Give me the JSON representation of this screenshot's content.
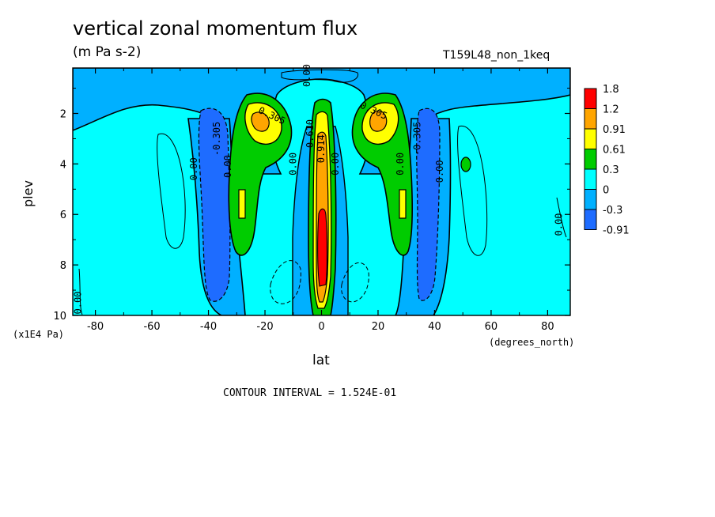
{
  "chart_data": {
    "type": "contour",
    "title": "vertical zonal momentum flux",
    "units": "(m Pa s-2)",
    "run_id": "T159L48_non_1keq",
    "xlabel": "lat",
    "xunit": "(degrees_north)",
    "ylabel": "plev",
    "yunit": "(x1E4 Pa)",
    "xlim": [
      -88,
      88
    ],
    "ylim": [
      10,
      0.2
    ],
    "x_ticks": [
      "-80",
      "-60",
      "-40",
      "-20",
      "0",
      "20",
      "40",
      "60",
      "80"
    ],
    "x_tick_values": [
      -80,
      -60,
      -40,
      -20,
      0,
      20,
      40,
      60,
      80
    ],
    "y_ticks": [
      "2",
      "4",
      "6",
      "8",
      "10"
    ],
    "y_tick_values": [
      2,
      4,
      6,
      8,
      10
    ],
    "contour_interval_text": "CONTOUR INTERVAL = 1.524E-01",
    "colorbar": {
      "levels": [
        "1.8",
        "1.2",
        "0.91",
        "0.61",
        "0.3",
        "0",
        "-0.3",
        "-0.91"
      ],
      "colors": [
        "#ff0000",
        "#ffa500",
        "#ffff00",
        "#00cc00",
        "#00ffff",
        "#00b0ff",
        "#1e6cff"
      ]
    },
    "contour_labels": [
      {
        "text": "0.00",
        "lat": -4,
        "p": 0.5
      },
      {
        "text": "-0.305",
        "lat": -36,
        "p": 3.0
      },
      {
        "text": "0.00",
        "lat": -44,
        "p": 4.2
      },
      {
        "text": "0.00",
        "lat": -32,
        "p": 4.1
      },
      {
        "text": "0.305",
        "lat": -18,
        "p": 2.2
      },
      {
        "text": "0.00",
        "lat": -9,
        "p": 4.0
      },
      {
        "text": "0.610",
        "lat": -3,
        "p": 2.8
      },
      {
        "text": "0.914",
        "lat": 1,
        "p": 3.4
      },
      {
        "text": "0.00",
        "lat": 6,
        "p": 4.0
      },
      {
        "text": "0.305",
        "lat": 18,
        "p": 2.0
      },
      {
        "text": "-0.305",
        "lat": 35,
        "p": 3.0
      },
      {
        "text": "0.00",
        "lat": 29,
        "p": 4.0
      },
      {
        "text": "0.00",
        "lat": 43,
        "p": 4.3
      },
      {
        "text": "0.00",
        "lat": 85,
        "p": 6.4
      },
      {
        "text": "0.00",
        "lat": -85,
        "p": 9.5
      }
    ]
  }
}
